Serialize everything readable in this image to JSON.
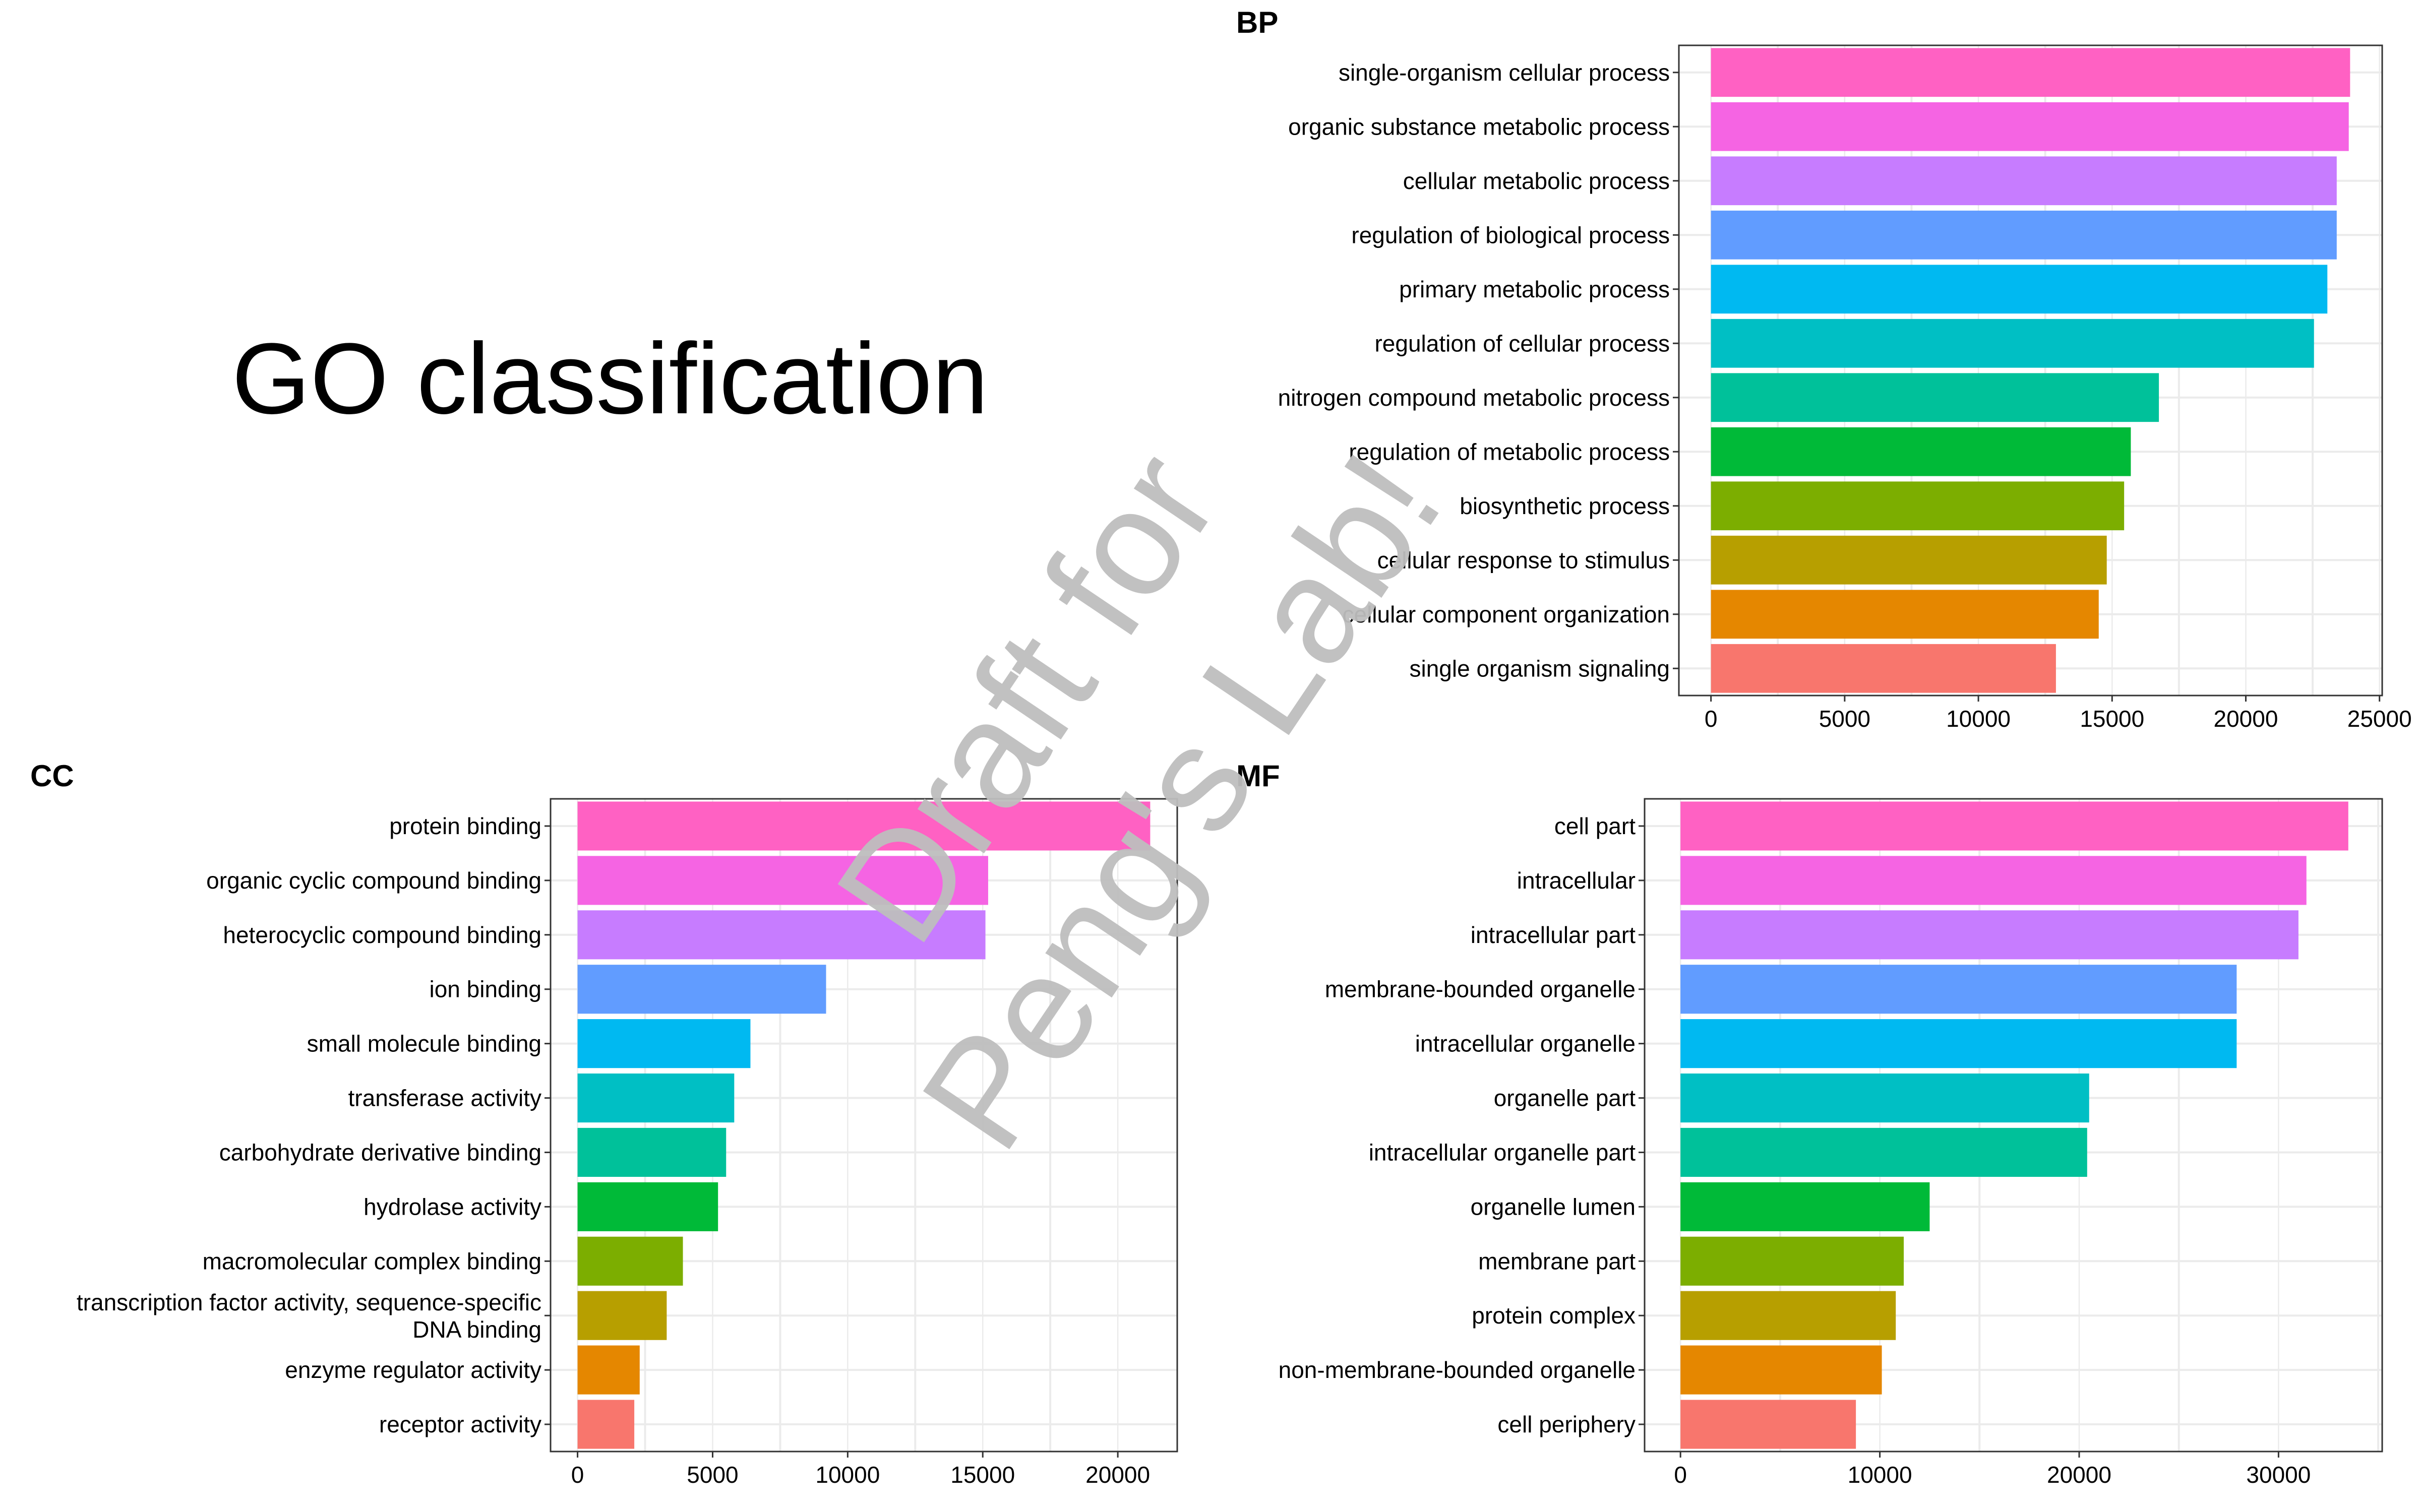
{
  "figure": {
    "title": "GO classification",
    "watermark_line1": "Draft for",
    "watermark_line2": "Peng's Lab!"
  },
  "colors": {
    "bars": [
      "#FF61C3",
      "#F564E3",
      "#C77CFF",
      "#619CFF",
      "#00B9F1",
      "#00BFC4",
      "#00C19A",
      "#00BA38",
      "#7CAE00",
      "#B79F00",
      "#E58700",
      "#F8766D"
    ],
    "panel_border": "#333333",
    "grid": "#EBEBEB",
    "text": "#000000",
    "watermark": "#BEBEBE"
  },
  "chart_data": [
    {
      "id": "bp",
      "type": "bar",
      "orientation": "horizontal",
      "title": "BP",
      "categories": [
        "single-organism cellular process",
        "organic substance metabolic process",
        "cellular metabolic process",
        "regulation of biological process",
        "primary metabolic process",
        "regulation of cellular process",
        "nitrogen compound metabolic process",
        "regulation of metabolic process",
        "biosynthetic process",
        "cellular response to stimulus",
        "cellular component organization",
        "single organism signaling"
      ],
      "values": [
        23900,
        23850,
        23400,
        23400,
        23050,
        22550,
        16750,
        15700,
        15450,
        14800,
        14500,
        12900
      ],
      "xlim": [
        -1200,
        25100
      ],
      "ticks": [
        0,
        5000,
        10000,
        15000,
        20000,
        25000
      ],
      "tick_labels": [
        "0",
        "5000",
        "10000",
        "15000",
        "20000",
        "25000"
      ],
      "grid": true
    },
    {
      "id": "cc",
      "type": "bar",
      "orientation": "horizontal",
      "title": "CC",
      "categories": [
        "protein binding",
        "organic cyclic compound binding",
        "heterocyclic compound binding",
        "ion binding",
        "small molecule binding",
        "transferase activity",
        "carbohydrate derivative binding",
        "hydrolase activity",
        "macromolecular complex binding",
        "transcription factor activity, sequence-specific DNA binding",
        "enzyme regulator activity",
        "receptor activity"
      ],
      "values": [
        21200,
        15200,
        15100,
        9200,
        6400,
        5800,
        5500,
        5200,
        3900,
        3300,
        2300,
        2100
      ],
      "xlim": [
        -1000,
        22200
      ],
      "ticks": [
        0,
        5000,
        10000,
        15000,
        20000
      ],
      "tick_labels": [
        "0",
        "5000",
        "10000",
        "15000",
        "20000"
      ],
      "grid": true
    },
    {
      "id": "mf",
      "type": "bar",
      "orientation": "horizontal",
      "title": "MF",
      "categories": [
        "cell part",
        "intracellular",
        "intracellular part",
        "membrane-bounded organelle",
        "intracellular organelle",
        "organelle part",
        "intracellular organelle part",
        "organelle lumen",
        "membrane part",
        "protein complex",
        "non-membrane-bounded organelle",
        "cell periphery"
      ],
      "values": [
        33500,
        31400,
        31000,
        27900,
        27900,
        20500,
        20400,
        12500,
        11200,
        10800,
        10100,
        8800
      ],
      "xlim": [
        -1800,
        35200
      ],
      "ticks": [
        0,
        10000,
        20000,
        30000
      ],
      "tick_labels": [
        "0",
        "10000",
        "20000",
        "30000"
      ],
      "grid": true
    }
  ]
}
